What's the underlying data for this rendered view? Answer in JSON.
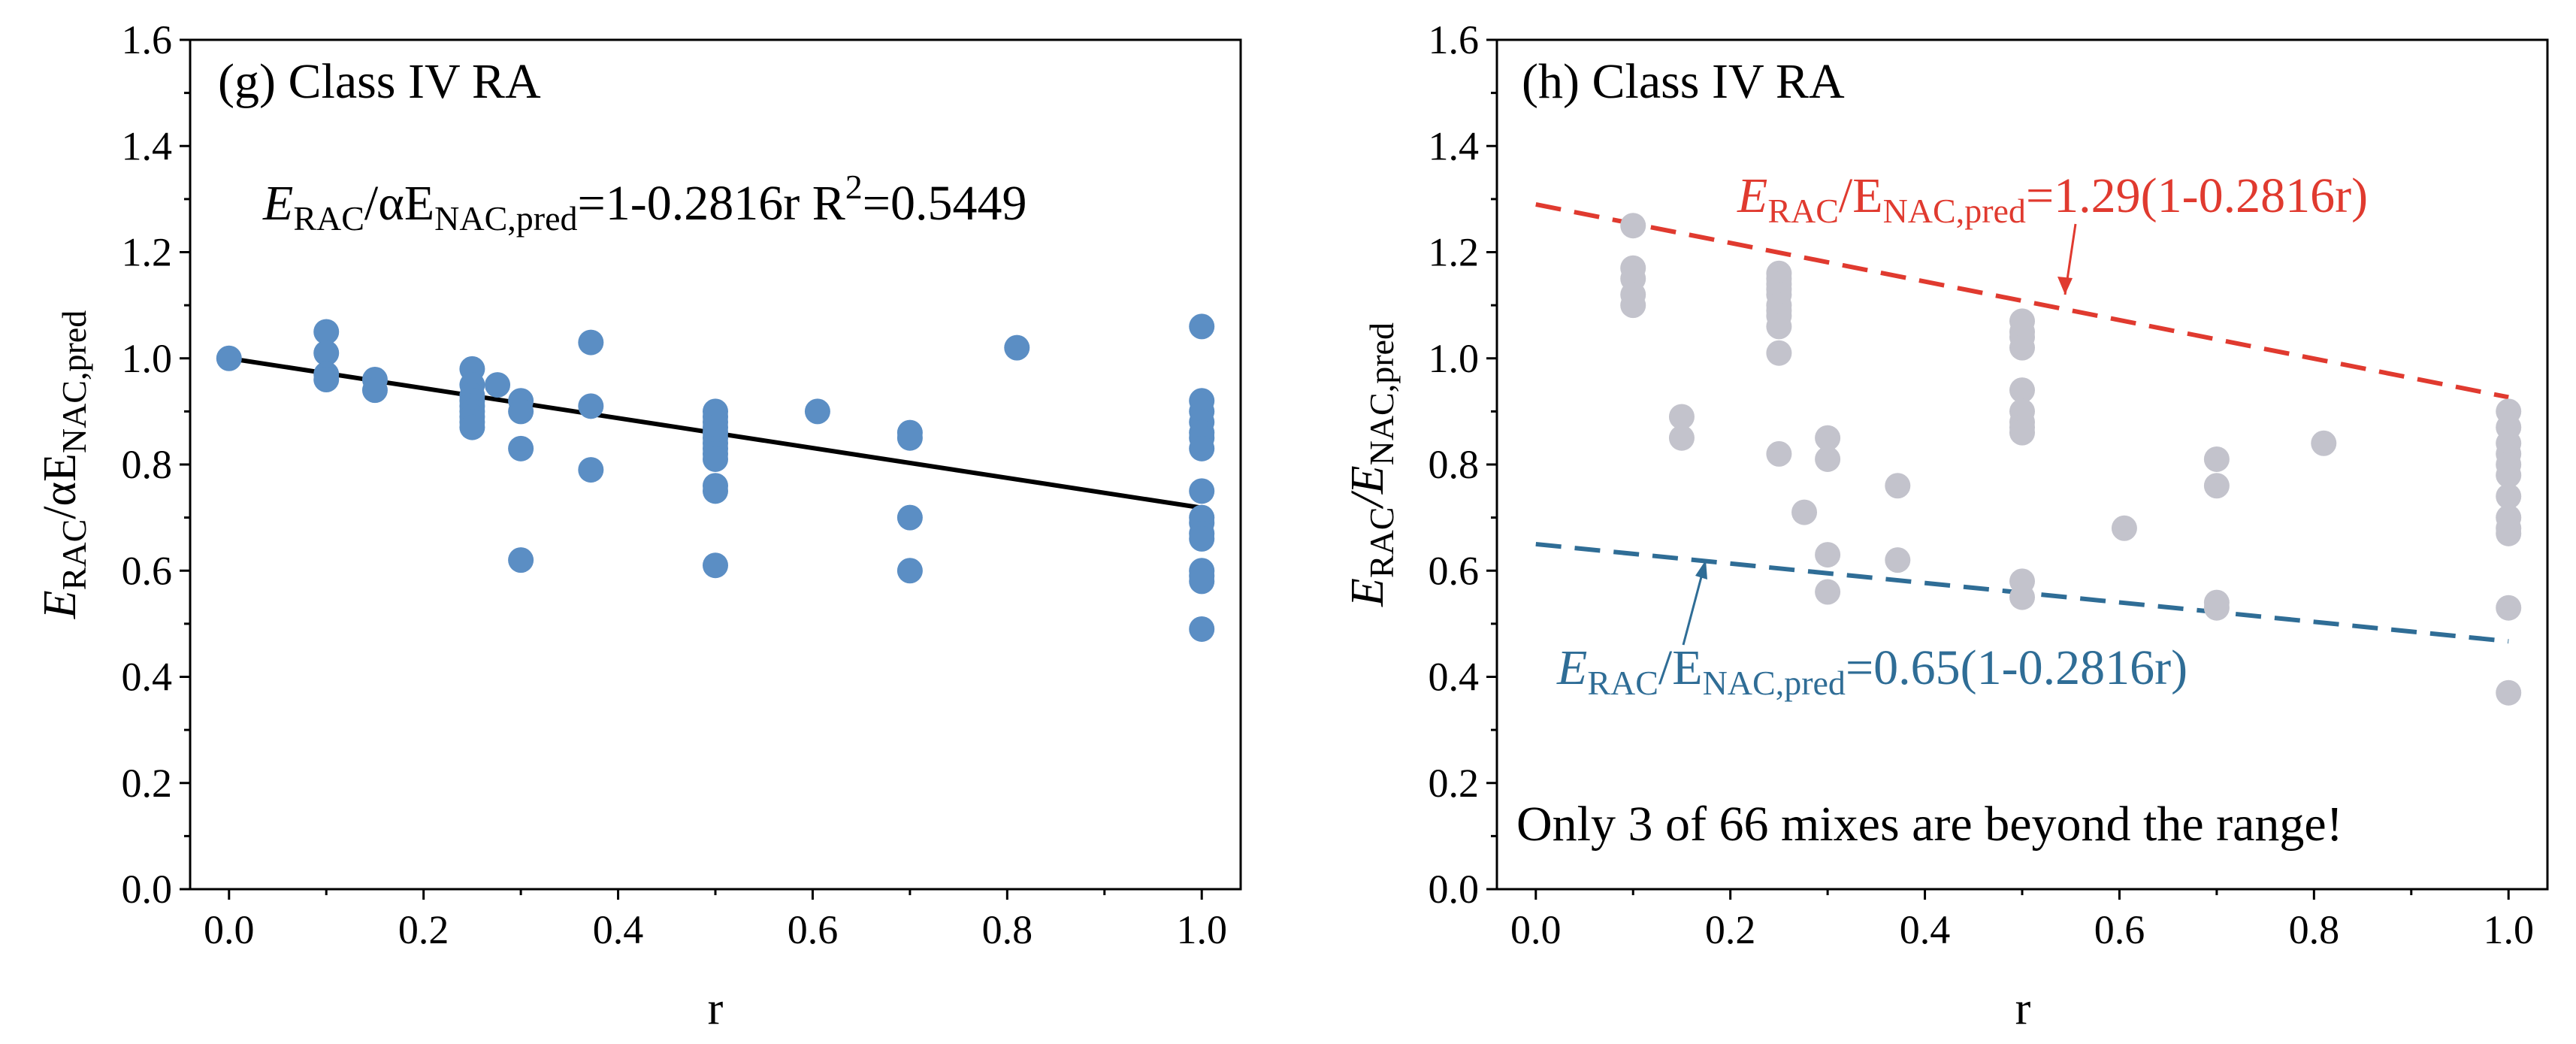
{
  "colors": {
    "left_points": "#5b8ec4",
    "fit_line": "#000000",
    "right_points": "#c3c3cc",
    "upper_bound": "#e03a2f",
    "lower_bound": "#2f6d96"
  },
  "chart_data": [
    {
      "type": "scatter",
      "panel": "g",
      "title": "(g) Class IV RA",
      "xlabel": "r",
      "ylabel": {
        "main": "E",
        "sub1": "RAC",
        "mid": "/αE",
        "sub2": "NAC,pred"
      },
      "xlim": [
        -0.04,
        1.04
      ],
      "ylim": [
        0,
        1.6
      ],
      "xticks": [
        "0.0",
        "0.2",
        "0.4",
        "0.6",
        "0.8",
        "1.0"
      ],
      "yticks": [
        "0.0",
        "0.2",
        "0.4",
        "0.6",
        "0.8",
        "1.0",
        "1.2",
        "1.4",
        "1.6"
      ],
      "equation": {
        "e1": "E",
        "s1": "RAC",
        "m1": "/αE",
        "s2": "NAC,pred",
        "m2": "=1-0.2816r R",
        "sup": "2",
        "m3": "=0.5449"
      },
      "fit": {
        "intercept": 1.0,
        "slope": -0.2816,
        "x_range": [
          0,
          1
        ]
      },
      "points": [
        [
          0.0,
          1.0
        ],
        [
          0.1,
          1.05
        ],
        [
          0.1,
          1.01
        ],
        [
          0.1,
          0.97
        ],
        [
          0.1,
          0.96
        ],
        [
          0.15,
          0.96
        ],
        [
          0.15,
          0.94
        ],
        [
          0.25,
          0.98
        ],
        [
          0.25,
          0.95
        ],
        [
          0.25,
          0.93
        ],
        [
          0.25,
          0.92
        ],
        [
          0.25,
          0.91
        ],
        [
          0.25,
          0.9
        ],
        [
          0.25,
          0.89
        ],
        [
          0.25,
          0.88
        ],
        [
          0.25,
          0.87
        ],
        [
          0.276,
          0.95
        ],
        [
          0.3,
          0.92
        ],
        [
          0.3,
          0.9
        ],
        [
          0.3,
          0.83
        ],
        [
          0.3,
          0.62
        ],
        [
          0.372,
          1.03
        ],
        [
          0.372,
          0.91
        ],
        [
          0.372,
          0.79
        ],
        [
          0.5,
          0.9
        ],
        [
          0.5,
          0.89
        ],
        [
          0.5,
          0.88
        ],
        [
          0.5,
          0.87
        ],
        [
          0.5,
          0.86
        ],
        [
          0.5,
          0.85
        ],
        [
          0.5,
          0.84
        ],
        [
          0.5,
          0.83
        ],
        [
          0.5,
          0.82
        ],
        [
          0.5,
          0.81
        ],
        [
          0.5,
          0.76
        ],
        [
          0.5,
          0.75
        ],
        [
          0.5,
          0.61
        ],
        [
          0.605,
          0.9
        ],
        [
          0.7,
          0.86
        ],
        [
          0.7,
          0.85
        ],
        [
          0.7,
          0.7
        ],
        [
          0.7,
          0.6
        ],
        [
          0.81,
          1.02
        ],
        [
          1.0,
          1.06
        ],
        [
          1.0,
          0.92
        ],
        [
          1.0,
          0.9
        ],
        [
          1.0,
          0.88
        ],
        [
          1.0,
          0.86
        ],
        [
          1.0,
          0.85
        ],
        [
          1.0,
          0.83
        ],
        [
          1.0,
          0.75
        ],
        [
          1.0,
          0.7
        ],
        [
          1.0,
          0.69
        ],
        [
          1.0,
          0.67
        ],
        [
          1.0,
          0.66
        ],
        [
          1.0,
          0.6
        ],
        [
          1.0,
          0.59
        ],
        [
          1.0,
          0.58
        ],
        [
          1.0,
          0.49
        ]
      ]
    },
    {
      "type": "scatter",
      "panel": "h",
      "title": "(h) Class IV RA",
      "xlabel": "r",
      "ylabel": {
        "main": "E",
        "sub1": "RAC",
        "mid": "/E",
        "sub2": "NAC,pred"
      },
      "xlim": [
        -0.04,
        1.04
      ],
      "ylim": [
        0,
        1.6
      ],
      "xticks": [
        "0.0",
        "0.2",
        "0.4",
        "0.6",
        "0.8",
        "1.0"
      ],
      "yticks": [
        "0.0",
        "0.2",
        "0.4",
        "0.6",
        "0.8",
        "1.0",
        "1.2",
        "1.4",
        "1.6"
      ],
      "upper_label": {
        "e": "E",
        "s1": "RAC",
        "m": "/E",
        "s2": "NAC,pred",
        "rest": "=1.29(1-0.2816r)"
      },
      "lower_label": {
        "e": "E",
        "s1": "RAC",
        "m": "/E",
        "s2": "NAC,pred",
        "rest": "=0.65(1-0.2816r)"
      },
      "upper_bound": {
        "factor": 1.29,
        "slope": -0.2816,
        "x_range": [
          0,
          1
        ]
      },
      "lower_bound": {
        "factor": 0.65,
        "slope": -0.2816,
        "x_range": [
          0,
          1
        ]
      },
      "note": "Only 3 of 66 mixes are beyond the range!",
      "points": [
        [
          0.1,
          1.25
        ],
        [
          0.1,
          1.17
        ],
        [
          0.1,
          1.15
        ],
        [
          0.1,
          1.12
        ],
        [
          0.1,
          1.1
        ],
        [
          0.15,
          0.89
        ],
        [
          0.15,
          0.85
        ],
        [
          0.25,
          1.16
        ],
        [
          0.25,
          1.15
        ],
        [
          0.25,
          1.14
        ],
        [
          0.25,
          1.13
        ],
        [
          0.25,
          1.12
        ],
        [
          0.25,
          1.1
        ],
        [
          0.25,
          1.09
        ],
        [
          0.25,
          1.08
        ],
        [
          0.25,
          1.06
        ],
        [
          0.25,
          1.01
        ],
        [
          0.25,
          0.82
        ],
        [
          0.276,
          0.71
        ],
        [
          0.3,
          0.85
        ],
        [
          0.3,
          0.81
        ],
        [
          0.3,
          0.63
        ],
        [
          0.3,
          0.56
        ],
        [
          0.372,
          0.76
        ],
        [
          0.372,
          0.62
        ],
        [
          0.5,
          1.07
        ],
        [
          0.5,
          1.05
        ],
        [
          0.5,
          1.04
        ],
        [
          0.5,
          1.02
        ],
        [
          0.5,
          0.94
        ],
        [
          0.5,
          0.9
        ],
        [
          0.5,
          0.88
        ],
        [
          0.5,
          0.87
        ],
        [
          0.5,
          0.86
        ],
        [
          0.5,
          0.58
        ],
        [
          0.5,
          0.55
        ],
        [
          0.605,
          0.68
        ],
        [
          0.7,
          0.81
        ],
        [
          0.7,
          0.76
        ],
        [
          0.7,
          0.54
        ],
        [
          0.7,
          0.53
        ],
        [
          0.81,
          0.84
        ],
        [
          1.0,
          0.9
        ],
        [
          1.0,
          0.87
        ],
        [
          1.0,
          0.84
        ],
        [
          1.0,
          0.82
        ],
        [
          1.0,
          0.8
        ],
        [
          1.0,
          0.78
        ],
        [
          1.0,
          0.74
        ],
        [
          1.0,
          0.7
        ],
        [
          1.0,
          0.68
        ],
        [
          1.0,
          0.67
        ],
        [
          1.0,
          0.53
        ],
        [
          1.0,
          0.37
        ]
      ]
    }
  ]
}
